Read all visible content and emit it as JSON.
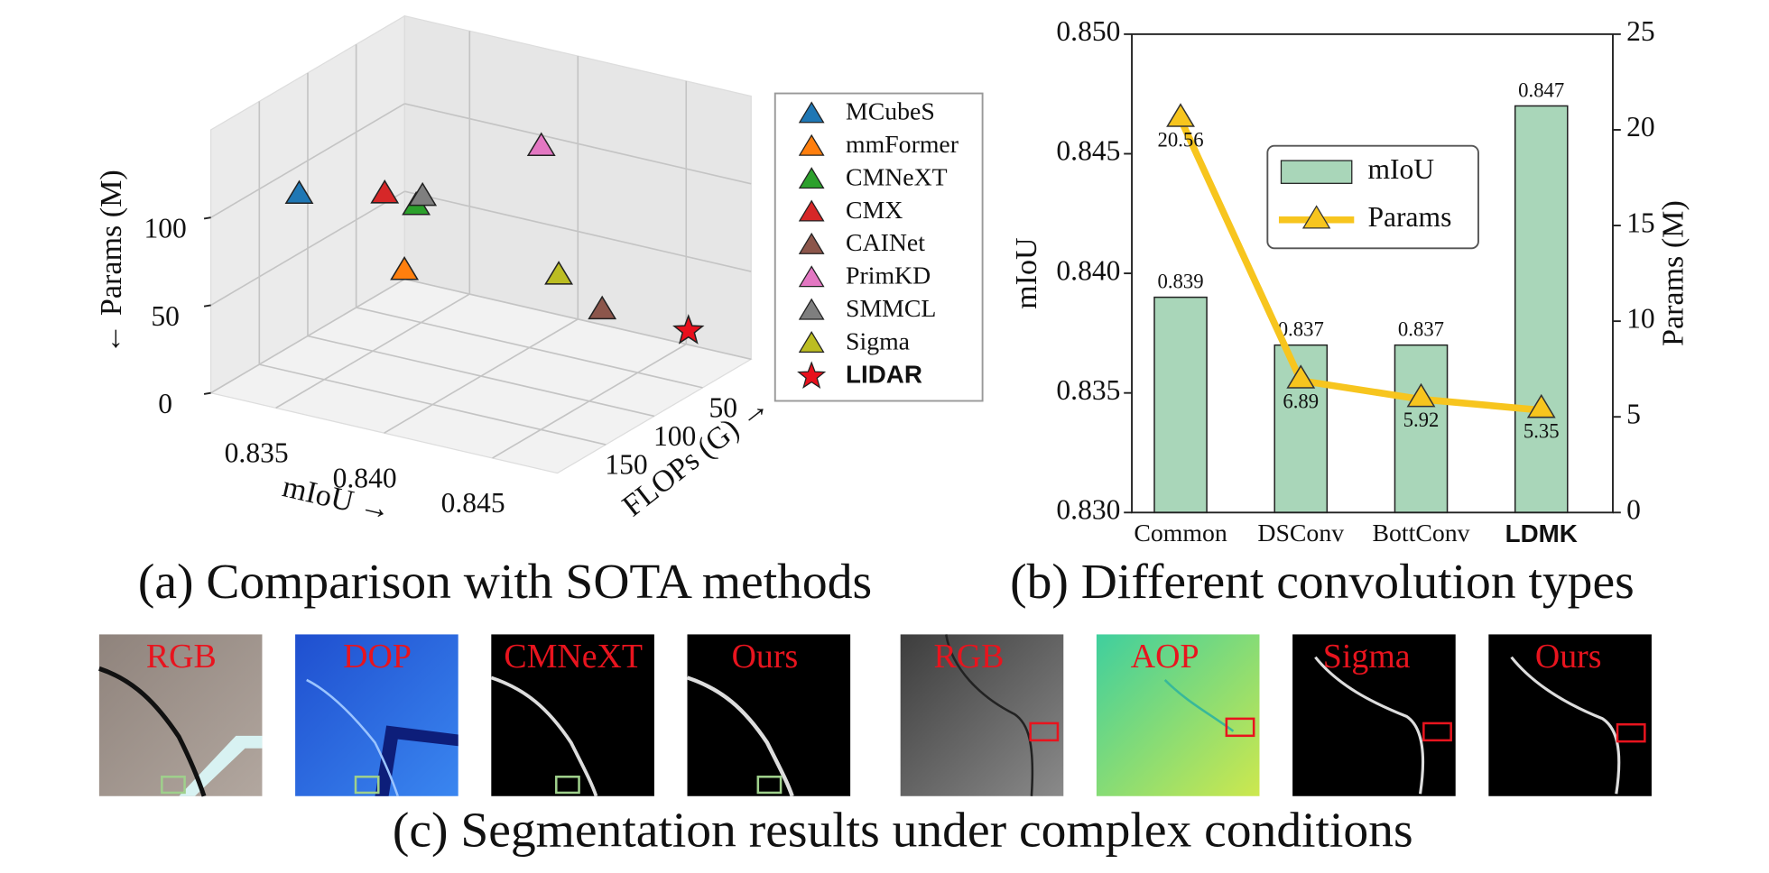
{
  "chart_data": [
    {
      "type": "scatter3d",
      "caption": "(a) Comparison with SOTA methods",
      "xlabel": "mIoU →",
      "ylabel": "FLOPs (G) →",
      "zlabel": "← Params (M)",
      "xlim": [
        0.832,
        0.848
      ],
      "ylim": [
        0,
        200
      ],
      "zlim": [
        0,
        150
      ],
      "xticks": [
        0.835,
        {
          "value": 0.84,
          "label": "0.840"
        },
        0.845
      ],
      "yticks": [
        50,
        100,
        150
      ],
      "zticks": [
        0,
        50,
        100
      ],
      "grid": true,
      "legend": "right",
      "highlight": "LIDAR",
      "series": [
        {
          "name": "MCubeS",
          "color": "#1f77b4",
          "marker": "triangle",
          "x": [
            0.8325
          ],
          "y": [
            120
          ],
          "z": [
            89
          ]
        },
        {
          "name": "mmFormer",
          "color": "#ff7f0e",
          "marker": "triangle",
          "x": [
            0.8387
          ],
          "y": [
            150
          ],
          "z": [
            73
          ]
        },
        {
          "name": "CMNeXT",
          "color": "#2ca02c",
          "marker": "triangle",
          "x": [
            0.8379
          ],
          "y": [
            120
          ],
          "z": [
            98
          ]
        },
        {
          "name": "CMX",
          "color": "#d62728",
          "marker": "triangle",
          "x": [
            0.836
          ],
          "y": [
            110
          ],
          "z": [
            96
          ]
        },
        {
          "name": "CAINet",
          "color": "#8c564b",
          "marker": "triangle",
          "x": [
            0.8447
          ],
          "y": [
            80
          ],
          "z": [
            45
          ]
        },
        {
          "name": "PrimKD",
          "color": "#e377c2",
          "marker": "triangle",
          "x": [
            0.8401
          ],
          "y": [
            40
          ],
          "z": [
            112
          ]
        },
        {
          "name": "SMMCL",
          "color": "#7f7f7f",
          "marker": "triangle",
          "x": [
            0.8373
          ],
          "y": [
            100
          ],
          "z": [
            95
          ]
        },
        {
          "name": "Sigma",
          "color": "#bcbd22",
          "marker": "triangle",
          "x": [
            0.8418
          ],
          "y": [
            60
          ],
          "z": [
            50
          ]
        },
        {
          "name": "LIDAR",
          "color": "#e8101c",
          "marker": "star",
          "x": [
            0.846
          ],
          "y": [
            20
          ],
          "z": [
            17
          ]
        }
      ]
    },
    {
      "type": "combo",
      "caption": "(b) Different convolution types",
      "categories": [
        "Common",
        "DSConv",
        "BottConv",
        "LDMK"
      ],
      "highlight": "LDMK",
      "ylabel": "mIoU",
      "y2label": "Params (M)",
      "ylim": [
        0.83,
        0.85
      ],
      "yticks": [
        {
          "value": 0.83,
          "label": "0.830"
        },
        0.835,
        {
          "value": 0.84,
          "label": "0.840"
        },
        0.845,
        {
          "value": 0.85,
          "label": "0.850"
        }
      ],
      "y2lim": [
        0,
        25
      ],
      "y2ticks": [
        0,
        5,
        10,
        15,
        20,
        25
      ],
      "legend": "upper center",
      "series": [
        {
          "name": "mIoU",
          "kind": "bar",
          "color": "#a9d6b9",
          "values": [
            0.839,
            0.837,
            0.837,
            0.847
          ]
        },
        {
          "name": "Params",
          "kind": "line",
          "axis": "y2",
          "color": "#f7c51e",
          "values": [
            20.56,
            6.89,
            5.92,
            5.35
          ]
        }
      ]
    }
  ],
  "images": {
    "caption": "(c) Segmentation results under complex conditions",
    "tiles": [
      {
        "label": "RGB"
      },
      {
        "label": "DOP"
      },
      {
        "label": "CMNeXT"
      },
      {
        "label": "Ours"
      },
      {
        "label": "RGB"
      },
      {
        "label": "AOP"
      },
      {
        "label": "Sigma"
      },
      {
        "label": "Ours"
      }
    ]
  }
}
